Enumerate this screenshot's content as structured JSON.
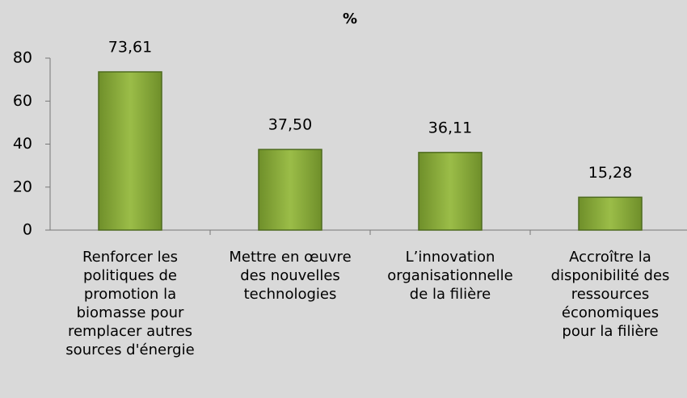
{
  "chart_data": {
    "type": "bar",
    "title": "%",
    "categories": [
      "Renforcer les\npolitiques de\npromotion la\nbiomasse pour\nremplacer autres\nsources d'énergie",
      "Mettre en œuvre\ndes nouvelles\ntechnologies",
      "L’innovation\norganisationnelle\nde la filière",
      "Accroître la\ndisponibilité des\nressources\néconomiques\npour la filière"
    ],
    "values": [
      73.61,
      37.5,
      36.11,
      15.28
    ],
    "value_labels": [
      "73,61",
      "37,50",
      "36,11",
      "15,28"
    ],
    "color": "#8aad3b",
    "ylim": [
      0,
      80
    ],
    "yticks": [
      0,
      20,
      40,
      60,
      80
    ],
    "grid": false
  }
}
